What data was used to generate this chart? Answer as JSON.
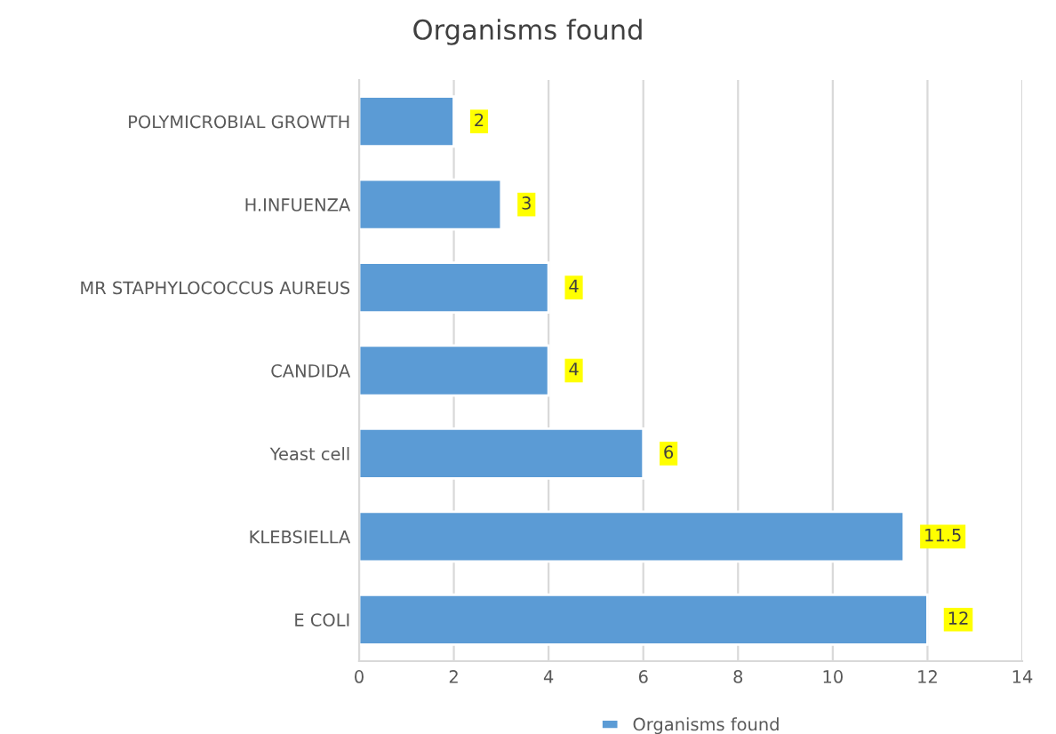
{
  "chart_data": {
    "type": "bar",
    "orientation": "horizontal",
    "title": "Organisms found",
    "categories": [
      "POLYMICROBIAL GROWTH",
      "H.INFUENZA",
      "MR STAPHYLOCOCCUS AUREUS",
      "CANDIDA",
      "Yeast cell",
      "KLEBSIELLA",
      "E COLI"
    ],
    "series": [
      {
        "name": "Organisms found",
        "color": "#5b9bd5",
        "values": [
          2,
          3,
          4,
          4,
          6,
          11.5,
          12
        ]
      }
    ],
    "xlim": [
      0,
      14
    ],
    "xticks": [
      0,
      2,
      4,
      6,
      8,
      10,
      12,
      14
    ],
    "grid": "x",
    "legend": "bottom",
    "data_labels": true
  }
}
